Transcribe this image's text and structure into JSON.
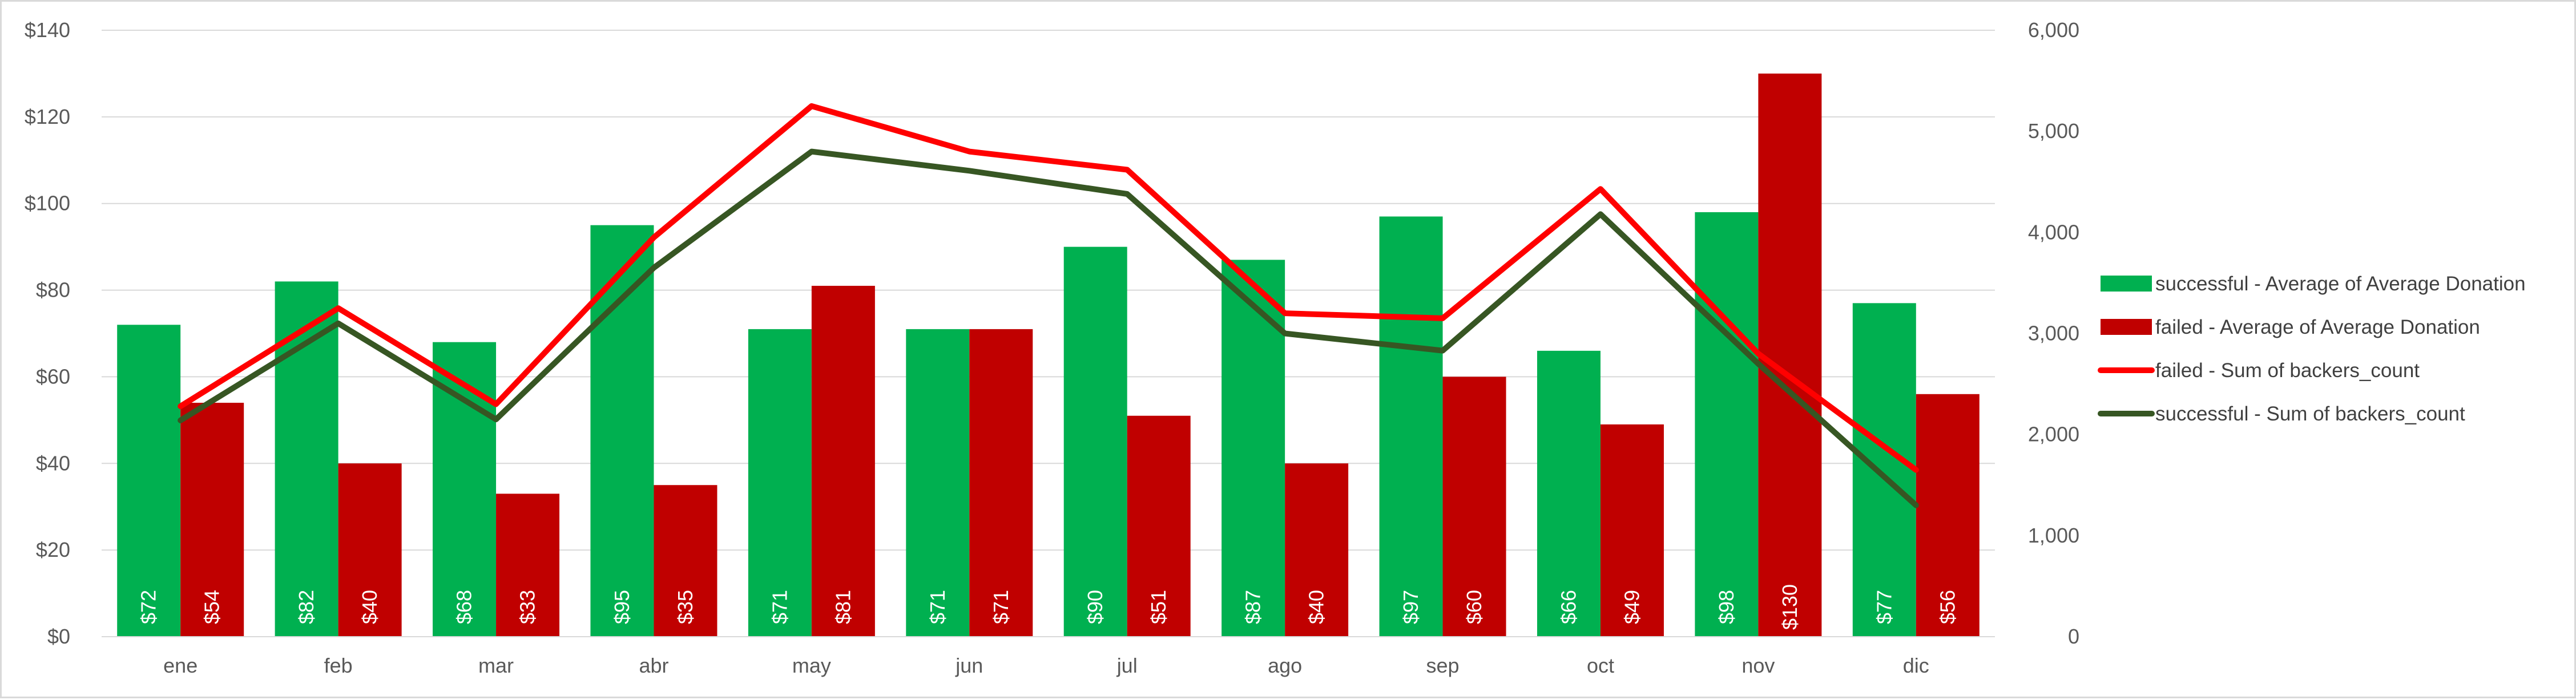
{
  "chart_data": {
    "type": "bar",
    "categories": [
      "ene",
      "feb",
      "mar",
      "abr",
      "may",
      "jun",
      "jul",
      "ago",
      "sep",
      "oct",
      "nov",
      "dic"
    ],
    "bar_series": [
      {
        "name": "successful - Average of Average Donation",
        "color": "#00b050",
        "values": [
          72,
          82,
          68,
          95,
          71,
          71,
          90,
          87,
          97,
          66,
          98,
          77
        ],
        "labels": [
          "$72",
          "$82",
          "$68",
          "$95",
          "$71",
          "$71",
          "$90",
          "$87",
          "$97",
          "$66",
          "$98",
          "$77"
        ]
      },
      {
        "name": "failed - Average of Average Donation",
        "color": "#c00000",
        "values": [
          54,
          40,
          33,
          35,
          81,
          71,
          51,
          40,
          60,
          49,
          130,
          56
        ],
        "labels": [
          "$54",
          "$40",
          "$33",
          "$35",
          "$81",
          "$71",
          "$51",
          "$40",
          "$60",
          "$49",
          "$130",
          "$56"
        ]
      }
    ],
    "line_series": [
      {
        "name": "failed - Sum of backers_count",
        "color": "#ff0000",
        "values": [
          2280,
          3250,
          2300,
          3950,
          5250,
          4800,
          4620,
          3200,
          3150,
          4430,
          2800,
          1650
        ]
      },
      {
        "name": "successful - Sum of backers_count",
        "color": "#375623",
        "values": [
          2140,
          3100,
          2150,
          3650,
          4800,
          4610,
          4380,
          3000,
          2830,
          4180,
          2700,
          1300
        ]
      }
    ],
    "y_left": {
      "min": 0,
      "max": 140,
      "step": 20,
      "tick_labels": [
        "$0",
        "$20",
        "$40",
        "$60",
        "$80",
        "$100",
        "$120",
        "$140"
      ]
    },
    "y_right": {
      "min": 0,
      "max": 6000,
      "step": 1000,
      "tick_labels": [
        "0",
        "1,000",
        "2,000",
        "3,000",
        "4,000",
        "5,000",
        "6,000"
      ]
    },
    "grid": true,
    "legend_position": "right",
    "title": "",
    "xlabel": "",
    "ylabel": ""
  }
}
